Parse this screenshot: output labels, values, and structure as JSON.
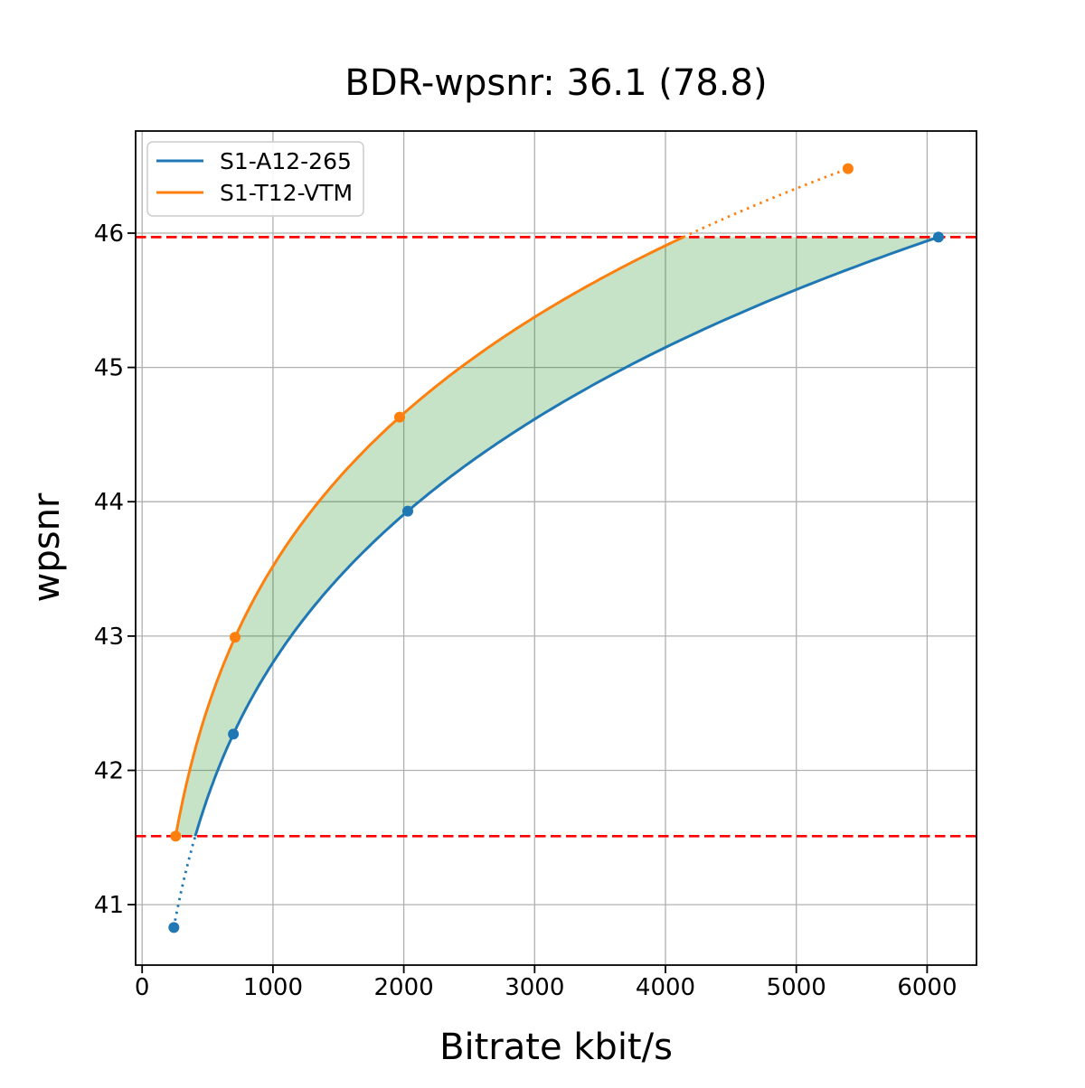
{
  "figure": {
    "title": "BDR-wpsnr: 36.1 (78.8)",
    "xlabel": "Bitrate kbit/s",
    "ylabel": "wpsnr"
  },
  "chart_data": {
    "type": "line",
    "title": "BDR-wpsnr: 36.1 (78.8)",
    "xlabel": "Bitrate kbit/s",
    "ylabel": "wpsnr",
    "xlim": [
      -50,
      6377
    ],
    "ylim": [
      40.55,
      46.76
    ],
    "x_ticks": [
      0,
      1000,
      2000,
      3000,
      4000,
      5000,
      6000
    ],
    "y_ticks": [
      41,
      42,
      43,
      44,
      45,
      46
    ],
    "grid": true,
    "grid_color": "#b0b0b0",
    "spine_color": "#000000",
    "legend": {
      "position": "upper left",
      "entries": [
        "S1-A12-265",
        "S1-T12-VTM"
      ]
    },
    "series": [
      {
        "name": "S1-A12-265",
        "color": "#1f77b4",
        "marker": "circle",
        "x": [
          242,
          697,
          2030,
          6086
        ],
        "y": [
          40.83,
          42.27,
          43.93,
          45.97
        ],
        "interpolation": "pchip-log",
        "clip_below": 41.51
      },
      {
        "name": "S1-T12-VTM",
        "color": "#ff7f0e",
        "marker": "circle",
        "x": [
          256,
          710,
          1968,
          5395
        ],
        "y": [
          41.51,
          42.99,
          44.63,
          46.48
        ],
        "interpolation": "pchip-log",
        "clip_above": 45.97
      }
    ],
    "overlap_lines": {
      "color": "#ff0000",
      "style": "dashed",
      "values": [
        41.51,
        45.97
      ]
    },
    "shaded_region": {
      "color": "#008000",
      "opacity": 0.22,
      "between": [
        "S1-T12-VTM",
        "S1-A12-265"
      ],
      "y_range": [
        41.51,
        45.97
      ]
    }
  }
}
